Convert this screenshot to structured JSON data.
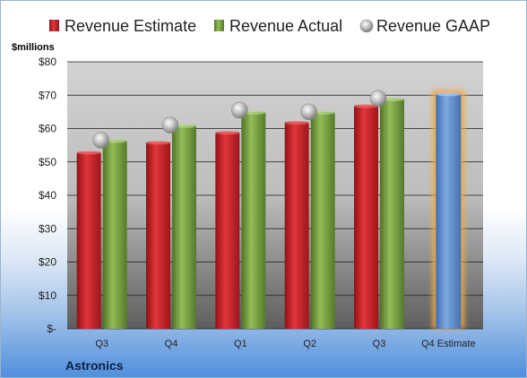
{
  "chart_data": {
    "type": "bar",
    "categories": [
      "Q3",
      "Q4",
      "Q1",
      "Q2",
      "Q3",
      "Q4 Estimate"
    ],
    "series": [
      {
        "name": "Revenue Estimate",
        "color": "#c81f24",
        "values": [
          53,
          56,
          59,
          62,
          67,
          null
        ]
      },
      {
        "name": "Revenue Actual",
        "color": "#78a040",
        "values": [
          56.5,
          61,
          65,
          65,
          69,
          null
        ]
      },
      {
        "name": "Revenue GAAP",
        "type": "scatter",
        "color": "#b8b8b8",
        "values": [
          56.5,
          61,
          65.5,
          65,
          69,
          null
        ]
      }
    ],
    "forecast": {
      "category": "Q4 Estimate",
      "value": 70.5,
      "color": "#5b8fd0",
      "glow": "#f5a742"
    },
    "ylim": [
      0,
      80
    ],
    "ytick_values": [
      0,
      10,
      20,
      30,
      40,
      50,
      60,
      70,
      80
    ],
    "ytick_labels": [
      "$-",
      "$10",
      "$20",
      "$30",
      "$40",
      "$50",
      "$60",
      "$70",
      "$80"
    ],
    "ylabel": "$millions",
    "grid": true,
    "legend": "top",
    "company": "Astronics"
  }
}
